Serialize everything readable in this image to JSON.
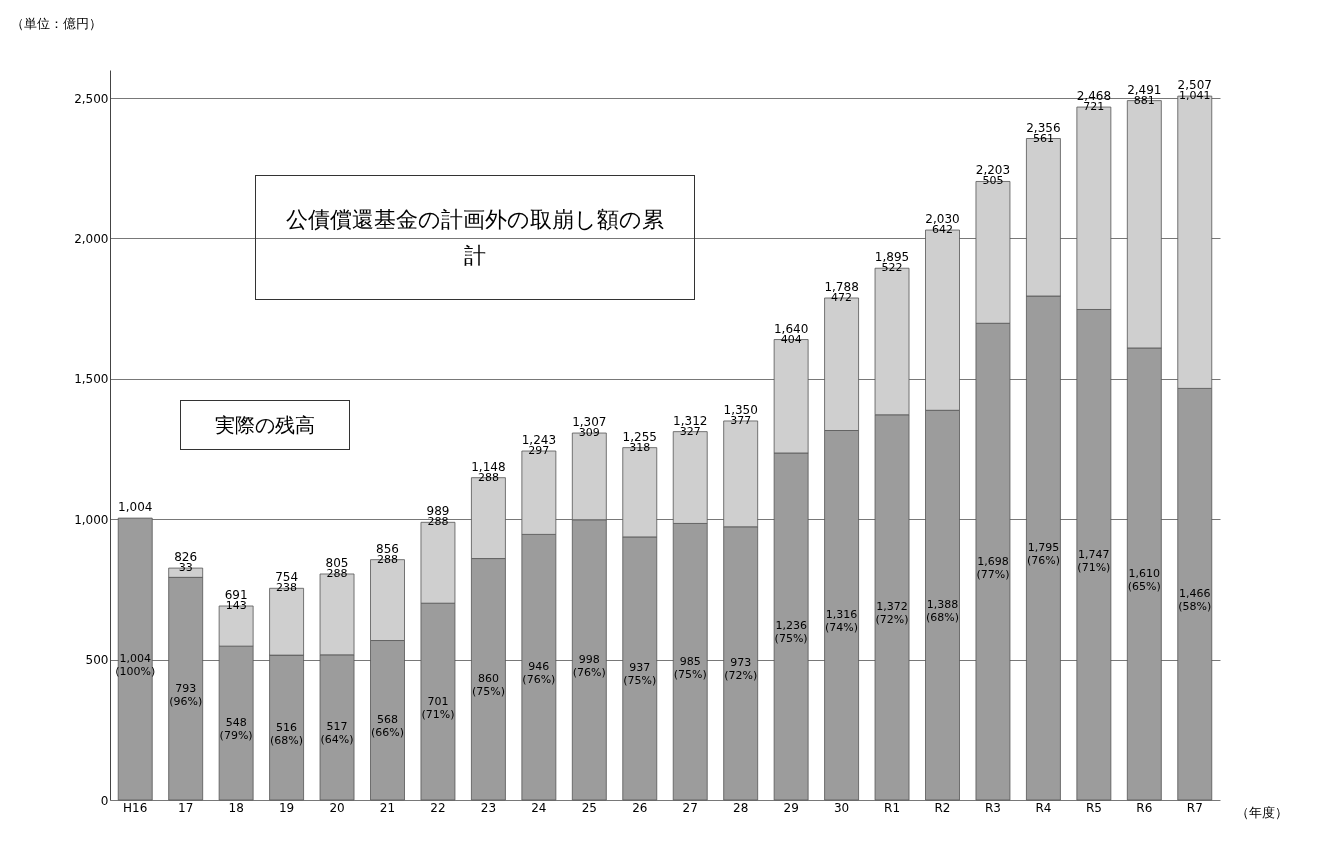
{
  "chart_data": {
    "type": "bar",
    "stacked": true,
    "ylabel": "（単位：億円）",
    "xlabel": "（年度）",
    "categories": [
      "H16",
      "17",
      "18",
      "19",
      "20",
      "21",
      "22",
      "23",
      "24",
      "25",
      "26",
      "27",
      "28",
      "29",
      "30",
      "R1",
      "R2",
      "R3",
      "R4",
      "R5",
      "R6",
      "R7"
    ],
    "series": [
      {
        "color": "#9c9c9c",
        "values": [
          1004,
          793,
          548,
          516,
          517,
          568,
          701,
          860,
          946,
          998,
          937,
          985,
          973,
          1236,
          1316,
          1372,
          1388,
          1698,
          1795,
          1747,
          1610,
          1466
        ],
        "value_labels": [
          "1,004 (100%)",
          "793 (96%)",
          "548 (79%)",
          "516 (68%)",
          "517 (64%)",
          "568 (66%)",
          "701 (71%)",
          "860 (75%)",
          "946 (76%)",
          "998 (76%)",
          "937 (75%)",
          "985 (75%)",
          "973 (72%)",
          "1,236 (75%)",
          "1,316 (74%)",
          "1,372 (72%)",
          "1,388 (68%)",
          "1,698 (77%)",
          "1,795 (76%)",
          "1,747 (71%)",
          "1,610 (65%)",
          "1,466 (58%)"
        ]
      },
      {
        "color": "#cfcfcf",
        "values": [
          null,
          33,
          143,
          238,
          288,
          288,
          288,
          288,
          297,
          309,
          318,
          327,
          377,
          404,
          472,
          522,
          642,
          505,
          561,
          721,
          881,
          1041
        ],
        "value_labels": [
          null,
          "33",
          "143",
          "238",
          "288",
          "288",
          "288",
          "288",
          "297",
          "309",
          "318",
          "327",
          "377",
          "404",
          "472",
          "522",
          "642",
          "505",
          "561",
          "721",
          "881",
          "1,041"
        ]
      }
    ],
    "totals": [
      "1,004",
      "826",
      "691",
      "754",
      "805",
      "856",
      "989",
      "1,148",
      "1,243",
      "1,307",
      "1,255",
      "1,312",
      "1,350",
      "1,640",
      "1,788",
      "1,895",
      "2,030",
      "2,203",
      "2,356",
      "2,468",
      "2,491",
      "2,507"
    ],
    "ylim": [
      0,
      2600
    ],
    "yticks": [
      0,
      500,
      {
        "value": 1000,
        "label": "1,000"
      },
      {
        "value": 1500,
        "label": "1,500"
      },
      {
        "value": 2000,
        "label": "2,000"
      },
      {
        "value": 2500,
        "label": "2,500"
      }
    ],
    "grid": "y",
    "annotations": [
      "公債償還基金の計画外の取崩し額の累計",
      "実際の残高"
    ]
  }
}
